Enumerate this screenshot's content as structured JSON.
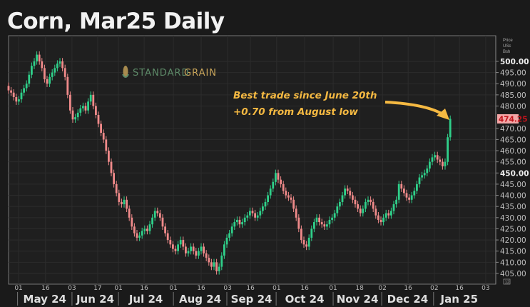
{
  "chart_data": {
    "type": "candlestick",
    "title": "Corn, Mar25 Daily",
    "yaxis_units": [
      "Price",
      "USc",
      "Bsh"
    ],
    "ylim": [
      400.2,
      511.5
    ],
    "yticks": [
      500,
      495,
      490,
      485,
      480,
      470,
      465,
      460,
      455,
      450,
      445,
      440,
      435,
      430,
      425,
      420,
      415,
      410,
      405
    ],
    "ytick_labels": [
      "500.00",
      "495.00",
      "490.00",
      "485.00",
      "480.00",
      "470.00",
      "465.00",
      "460.00",
      "455.00",
      "450.00",
      "445.00",
      "440.00",
      "435.00",
      "430.00",
      "425.00",
      "420.00",
      "415.00",
      "410.00",
      "405.00"
    ],
    "bold_yticks": [
      "500.00",
      "450.00"
    ],
    "last_price": 474.25,
    "last_price_label": "474.25",
    "axis_corner_label": "12",
    "first_open": 489,
    "closes": [
      487,
      486,
      484,
      482,
      483,
      486,
      488,
      490,
      494,
      498,
      500,
      503,
      500,
      497,
      492,
      490,
      493,
      495,
      497,
      499,
      500,
      497,
      493,
      485,
      478,
      474,
      475,
      477,
      479,
      480,
      478,
      482,
      485,
      480,
      476,
      472,
      468,
      465,
      460,
      455,
      450,
      445,
      441,
      437,
      436,
      438,
      434,
      430,
      426,
      423,
      421,
      422,
      424,
      425,
      424,
      427,
      430,
      433,
      432,
      430,
      426,
      423,
      420,
      418,
      416,
      415,
      418,
      420,
      417,
      414,
      415,
      417,
      415,
      413,
      415,
      417,
      414,
      412,
      410,
      408,
      410,
      406,
      408,
      413,
      418,
      421,
      423,
      426,
      428,
      429,
      427,
      428,
      430,
      431,
      433,
      432,
      430,
      431,
      433,
      435,
      437,
      440,
      443,
      446,
      450,
      447,
      445,
      442,
      440,
      439,
      438,
      434,
      430,
      425,
      420,
      418,
      417,
      421,
      425,
      428,
      430,
      428,
      427,
      426,
      427,
      429,
      430,
      432,
      435,
      437,
      440,
      443,
      442,
      440,
      438,
      436,
      434,
      432,
      434,
      437,
      438,
      437,
      434,
      431,
      429,
      428,
      430,
      432,
      431,
      433,
      436,
      438,
      445,
      443,
      441,
      439,
      438,
      440,
      442,
      445,
      448,
      449,
      450,
      452,
      455,
      457,
      458,
      456,
      455,
      453,
      455,
      466,
      474.25
    ],
    "wick": 1.5,
    "xticks": [
      {
        "label": "01",
        "index": 3.9
      },
      {
        "label": "16",
        "index": 14.4
      },
      {
        "label": "03",
        "index": 24.7
      },
      {
        "label": "17",
        "index": 34.7
      },
      {
        "label": "01",
        "index": 42.8
      },
      {
        "label": "16",
        "index": 52.8
      },
      {
        "label": "01",
        "index": 64.2
      },
      {
        "label": "16",
        "index": 75
      },
      {
        "label": "03",
        "index": 85.3
      },
      {
        "label": "16",
        "index": 94.2
      },
      {
        "label": "01",
        "index": 104.4
      },
      {
        "label": "16",
        "index": 115.3
      },
      {
        "label": "01",
        "index": 126.4
      },
      {
        "label": "18",
        "index": 136.7
      },
      {
        "label": "02",
        "index": 145.6
      },
      {
        "label": "16",
        "index": 155.6
      },
      {
        "label": "02",
        "index": 165.8
      },
      {
        "label": "16",
        "index": 175.6
      },
      {
        "label": "03",
        "index": 185.8
      }
    ],
    "months": [
      {
        "label": "May 24",
        "start": 3.5,
        "end": 24.7
      },
      {
        "label": "Jun 24",
        "start": 24.7,
        "end": 42.8
      },
      {
        "label": "Jul 24",
        "start": 42.8,
        "end": 64.2
      },
      {
        "label": "Aug 24",
        "start": 64.2,
        "end": 85
      },
      {
        "label": "Sep 24",
        "start": 85,
        "end": 104.2
      },
      {
        "label": "Oct 24",
        "start": 104.2,
        "end": 126.4
      },
      {
        "label": "Nov 24",
        "start": 126.4,
        "end": 145.3
      },
      {
        "label": "Dec 24",
        "start": 145.3,
        "end": 165.5
      },
      {
        "label": "Jan 25",
        "start": 165.5,
        "end": 185.5
      }
    ],
    "annotation": {
      "line1": "Best trade since June 20th",
      "line2": "+0.70 from August low"
    },
    "colors": {
      "up": "#2fd08a",
      "down": "#f08a8a",
      "background": "#1e1e1e",
      "grid": "#2c2c2c",
      "annotation": "#f5b942",
      "last_price_bg": "#f4a6a6",
      "last_price_text": "#c0141c"
    }
  },
  "logo": {
    "part1": "STANDARD",
    "part2": "GRAIN"
  }
}
